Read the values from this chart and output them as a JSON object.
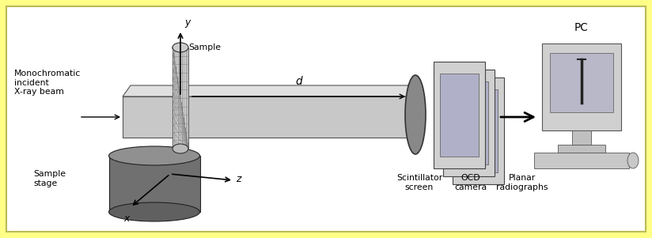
{
  "background_color": "#ffff88",
  "inner_bg": "#ffffff",
  "fig_width": 8.24,
  "fig_height": 3.01,
  "labels": {
    "monochromatic": "Monochromatic\nincident\nX-ray beam",
    "sample": "Sample",
    "sample_stage": "Sample\nstage",
    "scintillator": "Scintillator\nscreen",
    "ocd_camera": "OCD\ncamera",
    "planar": "Planar\nradiographs",
    "pc": "PC",
    "d_label": "d",
    "y_label": "y",
    "z_label": "z",
    "x_label": "x"
  }
}
